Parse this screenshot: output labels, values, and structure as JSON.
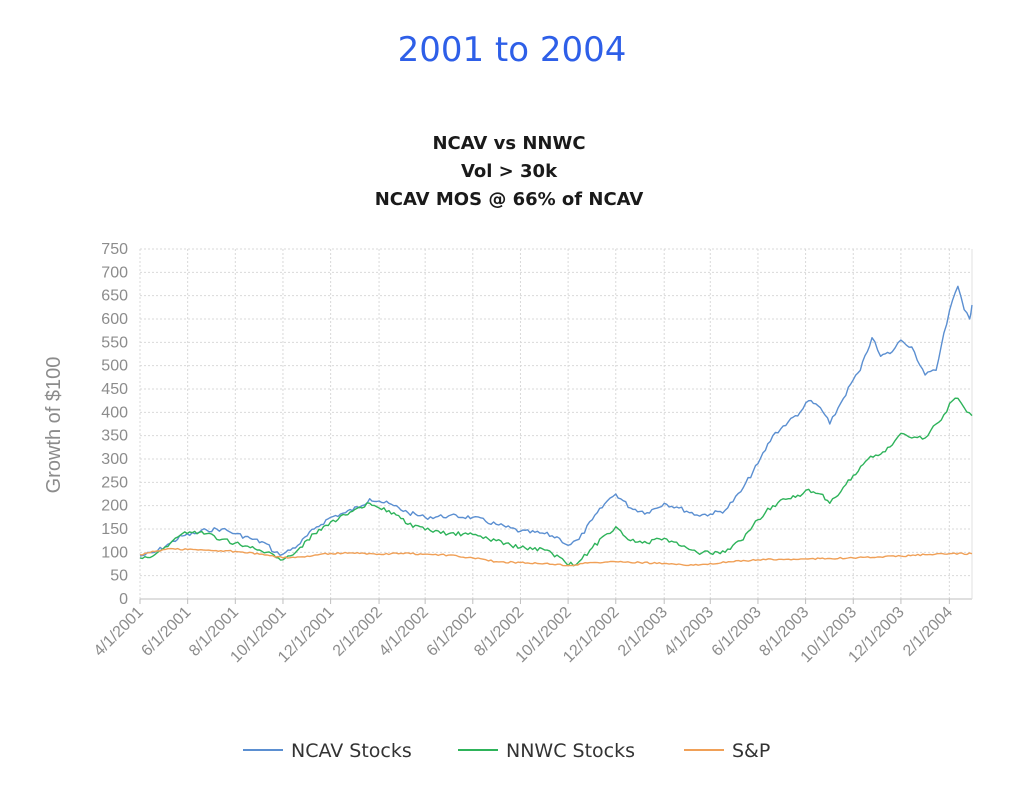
{
  "header": {
    "title": "2001 to 2004",
    "color": "#2e5fe8"
  },
  "chart_data": {
    "type": "line",
    "title_lines": [
      "NCAV vs NNWC",
      "Vol > 30k",
      "NCAV MOS @ 66% of NCAV"
    ],
    "ylabel": "Growth of $100",
    "xlabel": "",
    "ylim": [
      0,
      750
    ],
    "yticks": [
      0,
      50,
      100,
      150,
      200,
      250,
      300,
      350,
      400,
      450,
      500,
      550,
      600,
      650,
      700,
      750
    ],
    "xlim": [
      "2001-04-01",
      "2004-03-01"
    ],
    "xticks": [
      "4/1/2001",
      "6/1/2001",
      "8/1/2001",
      "10/1/2001",
      "12/1/2001",
      "2/1/2002",
      "4/1/2002",
      "6/1/2002",
      "8/1/2002",
      "10/1/2002",
      "12/1/2002",
      "2/1/2003",
      "4/1/2003",
      "6/1/2003",
      "8/1/2003",
      "10/1/2003",
      "12/1/2003",
      "2/1/2004"
    ],
    "grid": true,
    "legend_position": "bottom",
    "series": [
      {
        "name": "NCAV Stocks",
        "color": "#5b8fd1",
        "points": [
          [
            "2001-04-01",
            92
          ],
          [
            "2001-04-20",
            100
          ],
          [
            "2001-05-10",
            120
          ],
          [
            "2001-05-25",
            135
          ],
          [
            "2001-06-10",
            140
          ],
          [
            "2001-06-25",
            148
          ],
          [
            "2001-07-15",
            150
          ],
          [
            "2001-08-01",
            140
          ],
          [
            "2001-08-20",
            130
          ],
          [
            "2001-09-10",
            118
          ],
          [
            "2001-09-20",
            100
          ],
          [
            "2001-10-01",
            96
          ],
          [
            "2001-10-20",
            115
          ],
          [
            "2001-11-10",
            150
          ],
          [
            "2001-12-01",
            175
          ],
          [
            "2001-12-20",
            185
          ],
          [
            "2002-01-10",
            200
          ],
          [
            "2002-01-20",
            215
          ],
          [
            "2002-02-01",
            210
          ],
          [
            "2002-02-20",
            200
          ],
          [
            "2002-03-10",
            185
          ],
          [
            "2002-04-01",
            175
          ],
          [
            "2002-05-01",
            178
          ],
          [
            "2002-06-01",
            175
          ],
          [
            "2002-07-01",
            160
          ],
          [
            "2002-08-01",
            145
          ],
          [
            "2002-09-01",
            140
          ],
          [
            "2002-09-20",
            130
          ],
          [
            "2002-10-01",
            115
          ],
          [
            "2002-10-15",
            128
          ],
          [
            "2002-11-01",
            170
          ],
          [
            "2002-11-20",
            210
          ],
          [
            "2002-12-01",
            225
          ],
          [
            "2002-12-20",
            195
          ],
          [
            "2003-01-10",
            185
          ],
          [
            "2003-02-01",
            205
          ],
          [
            "2003-02-20",
            195
          ],
          [
            "2003-03-15",
            180
          ],
          [
            "2003-04-01",
            182
          ],
          [
            "2003-04-20",
            190
          ],
          [
            "2003-05-10",
            230
          ],
          [
            "2003-06-01",
            290
          ],
          [
            "2003-06-20",
            350
          ],
          [
            "2003-07-10",
            380
          ],
          [
            "2003-07-25",
            400
          ],
          [
            "2003-08-05",
            425
          ],
          [
            "2003-08-20",
            410
          ],
          [
            "2003-09-01",
            375
          ],
          [
            "2003-09-15",
            420
          ],
          [
            "2003-10-01",
            470
          ],
          [
            "2003-10-10",
            490
          ],
          [
            "2003-10-25",
            560
          ],
          [
            "2003-11-05",
            520
          ],
          [
            "2003-11-20",
            530
          ],
          [
            "2003-12-01",
            555
          ],
          [
            "2003-12-15",
            540
          ],
          [
            "2004-01-01",
            480
          ],
          [
            "2004-01-15",
            490
          ],
          [
            "2004-01-25",
            570
          ],
          [
            "2004-02-05",
            640
          ],
          [
            "2004-02-12",
            670
          ],
          [
            "2004-02-20",
            620
          ],
          [
            "2004-02-27",
            600
          ],
          [
            "2004-03-01",
            630
          ]
        ]
      },
      {
        "name": "NNWC Stocks",
        "color": "#2eb35a",
        "points": [
          [
            "2001-04-01",
            88
          ],
          [
            "2001-04-20",
            95
          ],
          [
            "2001-05-10",
            120
          ],
          [
            "2001-05-25",
            140
          ],
          [
            "2001-06-10",
            145
          ],
          [
            "2001-06-25",
            140
          ],
          [
            "2001-07-15",
            128
          ],
          [
            "2001-08-01",
            120
          ],
          [
            "2001-08-20",
            110
          ],
          [
            "2001-09-10",
            100
          ],
          [
            "2001-09-25",
            88
          ],
          [
            "2001-10-01",
            84
          ],
          [
            "2001-10-20",
            105
          ],
          [
            "2001-11-10",
            140
          ],
          [
            "2001-12-01",
            165
          ],
          [
            "2001-12-20",
            180
          ],
          [
            "2002-01-10",
            195
          ],
          [
            "2002-01-20",
            205
          ],
          [
            "2002-02-01",
            195
          ],
          [
            "2002-02-20",
            185
          ],
          [
            "2002-03-10",
            160
          ],
          [
            "2002-04-01",
            148
          ],
          [
            "2002-05-01",
            140
          ],
          [
            "2002-06-01",
            138
          ],
          [
            "2002-07-01",
            125
          ],
          [
            "2002-08-01",
            110
          ],
          [
            "2002-09-01",
            105
          ],
          [
            "2002-09-20",
            90
          ],
          [
            "2002-10-01",
            72
          ],
          [
            "2002-10-15",
            80
          ],
          [
            "2002-11-01",
            110
          ],
          [
            "2002-11-20",
            140
          ],
          [
            "2002-12-01",
            155
          ],
          [
            "2002-12-20",
            125
          ],
          [
            "2003-01-10",
            120
          ],
          [
            "2003-02-01",
            130
          ],
          [
            "2003-02-20",
            115
          ],
          [
            "2003-03-15",
            100
          ],
          [
            "2003-04-01",
            98
          ],
          [
            "2003-04-20",
            100
          ],
          [
            "2003-05-10",
            125
          ],
          [
            "2003-06-01",
            170
          ],
          [
            "2003-06-20",
            200
          ],
          [
            "2003-07-10",
            215
          ],
          [
            "2003-07-25",
            220
          ],
          [
            "2003-08-05",
            235
          ],
          [
            "2003-08-20",
            225
          ],
          [
            "2003-09-01",
            205
          ],
          [
            "2003-09-15",
            230
          ],
          [
            "2003-10-01",
            265
          ],
          [
            "2003-10-20",
            300
          ],
          [
            "2003-11-05",
            310
          ],
          [
            "2003-11-20",
            330
          ],
          [
            "2003-12-01",
            355
          ],
          [
            "2003-12-15",
            345
          ],
          [
            "2004-01-01",
            345
          ],
          [
            "2004-01-15",
            375
          ],
          [
            "2004-01-25",
            395
          ],
          [
            "2004-02-05",
            425
          ],
          [
            "2004-02-12",
            430
          ],
          [
            "2004-02-20",
            410
          ],
          [
            "2004-03-01",
            393
          ]
        ]
      },
      {
        "name": "S&P",
        "color": "#f0a057",
        "points": [
          [
            "2001-04-01",
            95
          ],
          [
            "2001-04-20",
            102
          ],
          [
            "2001-05-10",
            108
          ],
          [
            "2001-06-01",
            106
          ],
          [
            "2001-07-01",
            104
          ],
          [
            "2001-08-01",
            102
          ],
          [
            "2001-09-01",
            96
          ],
          [
            "2001-10-01",
            88
          ],
          [
            "2001-11-01",
            92
          ],
          [
            "2001-12-01",
            98
          ],
          [
            "2002-01-01",
            98
          ],
          [
            "2002-02-01",
            96
          ],
          [
            "2002-03-01",
            98
          ],
          [
            "2002-04-01",
            96
          ],
          [
            "2002-05-01",
            94
          ],
          [
            "2002-06-01",
            88
          ],
          [
            "2002-07-01",
            80
          ],
          [
            "2002-08-01",
            78
          ],
          [
            "2002-09-01",
            76
          ],
          [
            "2002-10-01",
            72
          ],
          [
            "2002-11-01",
            78
          ],
          [
            "2002-12-01",
            80
          ],
          [
            "2003-01-01",
            78
          ],
          [
            "2003-02-01",
            76
          ],
          [
            "2003-03-01",
            72
          ],
          [
            "2003-04-01",
            76
          ],
          [
            "2003-05-01",
            80
          ],
          [
            "2003-06-01",
            84
          ],
          [
            "2003-07-01",
            85
          ],
          [
            "2003-08-01",
            86
          ],
          [
            "2003-09-01",
            87
          ],
          [
            "2003-10-01",
            88
          ],
          [
            "2003-11-01",
            90
          ],
          [
            "2003-12-01",
            92
          ],
          [
            "2004-01-01",
            95
          ],
          [
            "2004-02-01",
            97
          ],
          [
            "2004-03-01",
            97
          ]
        ]
      }
    ]
  }
}
